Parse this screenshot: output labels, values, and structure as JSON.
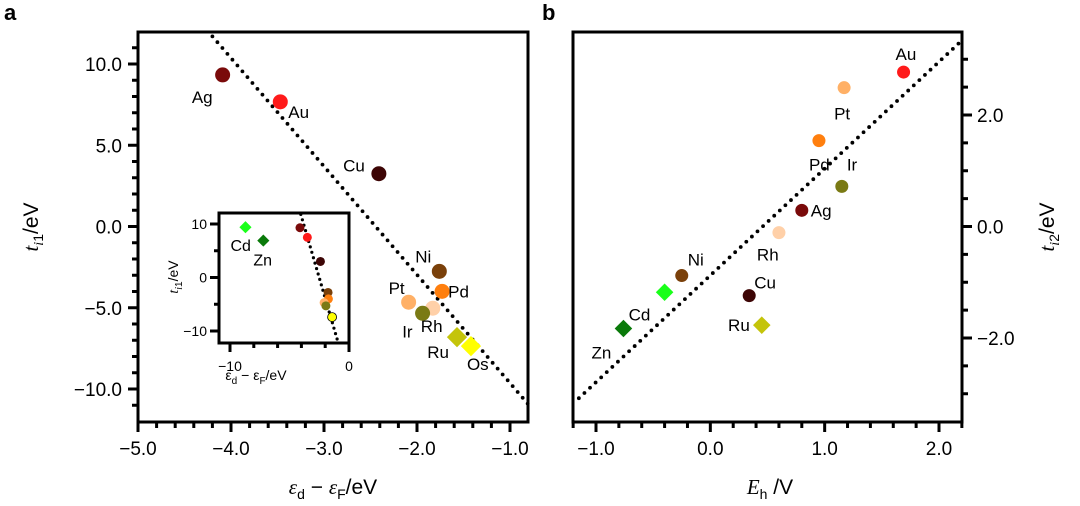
{
  "chart_data": [
    {
      "id": "a",
      "type": "scatter",
      "panel_label": "a",
      "title": "",
      "xlabel": "εd − εF/eV",
      "ylabel": "ti1/eV",
      "xlim": [
        -5.0,
        -0.8
      ],
      "ylim": [
        -12.0,
        12.0
      ],
      "x_ticks": [
        -5.0,
        -4.0,
        -3.0,
        -2.0,
        -1.0
      ],
      "x_tick_labels": [
        "−5.0",
        "−4.0",
        "−3.0",
        "−2.0",
        "−1.0"
      ],
      "y_ticks": [
        10.0,
        5.0,
        0.0,
        -5.0,
        -10.0
      ],
      "y_tick_labels": [
        "10.0",
        "5.0",
        "0.0",
        "−5.0",
        "−10.0"
      ],
      "grid": false,
      "fit_line": {
        "style": "dotted",
        "points": [
          [
            -4.2,
            11.7
          ],
          [
            -0.81,
            -10.9
          ]
        ]
      },
      "points": [
        {
          "label": "Ag",
          "x": -4.09,
          "y": 9.33,
          "marker": "circle",
          "color": "#7a0a0a"
        },
        {
          "label": "Au",
          "x": -3.47,
          "y": 7.67,
          "marker": "circle",
          "color": "#ff1a1a"
        },
        {
          "label": "Cu",
          "x": -2.41,
          "y": 3.25,
          "marker": "circle",
          "color": "#3d0505"
        },
        {
          "label": "Ni",
          "x": -1.76,
          "y": -2.76,
          "marker": "circle",
          "color": "#7a400a"
        },
        {
          "label": "Pd",
          "x": -1.73,
          "y": -3.99,
          "marker": "circle",
          "color": "#ff7f0e"
        },
        {
          "label": "Pt",
          "x": -2.09,
          "y": -4.66,
          "marker": "circle",
          "color": "#ffb066"
        },
        {
          "label": "Rh",
          "x": -1.83,
          "y": -5.03,
          "marker": "circle",
          "color": "#ffd0a8"
        },
        {
          "label": "Ir",
          "x": -1.94,
          "y": -5.34,
          "marker": "circle",
          "color": "#7a7a14"
        },
        {
          "label": "Ru",
          "x": -1.57,
          "y": -6.81,
          "marker": "diamond",
          "color": "#c4c40a"
        },
        {
          "label": "Os",
          "x": -1.42,
          "y": -7.36,
          "marker": "diamond",
          "color": "#ffff00"
        }
      ],
      "inset": {
        "type": "scatter",
        "xlabel": "εd − εF/eV",
        "ylabel": "ti1/eV",
        "xlim": [
          -10.9,
          0.0
        ],
        "ylim": [
          -12.3,
          12.0
        ],
        "x_ticks": [
          -10,
          0
        ],
        "x_tick_labels": [
          "−10",
          "0"
        ],
        "y_ticks": [
          10,
          0,
          -10
        ],
        "y_tick_labels": [
          "10",
          "0",
          "−10"
        ],
        "fit_line": {
          "style": "dotted",
          "points": [
            [
              -4.05,
              11.8
            ],
            [
              -1.0,
              -11.5
            ]
          ]
        },
        "points": [
          {
            "label": "Cd",
            "x": -8.7,
            "y": 9.4,
            "marker": "diamond",
            "color": "#1aff1a"
          },
          {
            "label": "Zn",
            "x": -7.2,
            "y": 6.9,
            "marker": "diamond",
            "color": "#0a7a0a"
          },
          {
            "label": "",
            "x": -4.12,
            "y": 9.3,
            "marker": "circle",
            "color": "#7a0a0a"
          },
          {
            "label": "",
            "x": -3.5,
            "y": 7.5,
            "marker": "circle",
            "color": "#ff1a1a"
          },
          {
            "label": "",
            "x": -2.4,
            "y": 3.0,
            "marker": "circle",
            "color": "#3d0505"
          },
          {
            "label": "",
            "x": -1.76,
            "y": -2.8,
            "marker": "circle",
            "color": "#7a400a"
          },
          {
            "label": "",
            "x": -1.73,
            "y": -4.0,
            "marker": "circle",
            "color": "#ff7f0e"
          },
          {
            "label": "",
            "x": -2.09,
            "y": -4.7,
            "marker": "circle",
            "color": "#ffb066"
          },
          {
            "label": "",
            "x": -1.94,
            "y": -5.3,
            "marker": "circle",
            "color": "#7a7a14"
          },
          {
            "label": "",
            "x": -1.42,
            "y": -7.4,
            "marker": "circle-yellow",
            "color": "#ffff00"
          }
        ]
      }
    },
    {
      "id": "b",
      "type": "scatter",
      "panel_label": "b",
      "title": "",
      "xlabel": "Eh /V",
      "ylabel": "ti2/eV",
      "xlim": [
        -1.2,
        2.2
      ],
      "ylim": [
        -3.49,
        3.49
      ],
      "x_ticks": [
        -1.0,
        0.0,
        1.0,
        2.0
      ],
      "x_tick_labels": [
        "−1.0",
        "0.0",
        "1.0",
        "2.0"
      ],
      "y_ticks": [
        2.0,
        0.0,
        -2.0
      ],
      "y_tick_labels": [
        "2.0",
        "0.0",
        "−2.0"
      ],
      "y_axis_side": "right",
      "grid": false,
      "fit_line": {
        "style": "dotted",
        "points": [
          [
            -1.15,
            -3.08
          ],
          [
            2.17,
            3.28
          ]
        ]
      },
      "points": [
        {
          "label": "Au",
          "x": 1.69,
          "y": 2.77,
          "marker": "circle",
          "color": "#ff1a1a"
        },
        {
          "label": "Pt",
          "x": 1.17,
          "y": 2.49,
          "marker": "circle",
          "color": "#ffb066"
        },
        {
          "label": "Pd",
          "x": 0.95,
          "y": 1.54,
          "marker": "circle",
          "color": "#ff7f0e"
        },
        {
          "label": "Ir",
          "x": 1.15,
          "y": 0.72,
          "marker": "circle",
          "color": "#7a7a14"
        },
        {
          "label": "Ag",
          "x": 0.8,
          "y": 0.29,
          "marker": "circle",
          "color": "#7a0a0a"
        },
        {
          "label": "Rh",
          "x": 0.6,
          "y": -0.11,
          "marker": "circle",
          "color": "#ffd0a8"
        },
        {
          "label": "Ni",
          "x": -0.25,
          "y": -0.88,
          "marker": "circle",
          "color": "#7a400a"
        },
        {
          "label": "Cd",
          "x": -0.4,
          "y": -1.18,
          "marker": "diamond",
          "color": "#1aff1a"
        },
        {
          "label": "Zn",
          "x": -0.76,
          "y": -1.83,
          "marker": "diamond",
          "color": "#0a7a0a"
        },
        {
          "label": "Cu",
          "x": 0.34,
          "y": -1.24,
          "marker": "circle",
          "color": "#3d0505"
        },
        {
          "label": "Ru",
          "x": 0.45,
          "y": -1.77,
          "marker": "diamond",
          "color": "#c4c40a"
        }
      ]
    }
  ]
}
